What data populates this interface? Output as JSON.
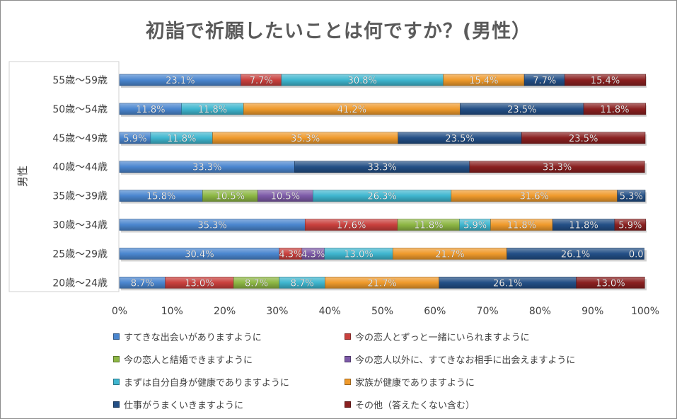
{
  "chart_data": {
    "type": "bar",
    "orientation": "horizontal",
    "stacked": "percent",
    "title": "初詣で祈願したいことは何ですか？(男性）",
    "ylabel": "男性",
    "xlim": [
      0,
      100
    ],
    "x_ticks": [
      "0%",
      "10%",
      "20%",
      "30%",
      "40%",
      "50%",
      "60%",
      "70%",
      "80%",
      "90%",
      "100%"
    ],
    "legend_position": "bottom",
    "categories": [
      "55歳～59歳",
      "50歳～54歳",
      "45歳～49歳",
      "40歳～44歳",
      "35歳～39歳",
      "30歳～34歳",
      "25歳～29歳",
      "20歳～24歳"
    ],
    "series": [
      {
        "name": "すてきな出会いがありますように",
        "color": "#4a86cf",
        "values": [
          23.1,
          11.8,
          5.9,
          33.3,
          15.8,
          35.3,
          30.4,
          8.7
        ]
      },
      {
        "name": "今の恋人とずっと一緒にいられますように",
        "color": "#c9403d",
        "values": [
          7.7,
          0,
          0,
          0,
          0,
          17.6,
          4.3,
          13.0
        ]
      },
      {
        "name": "今の恋人と結婚できますように",
        "color": "#8db744",
        "values": [
          0,
          0,
          0,
          0,
          10.5,
          11.8,
          0,
          8.7
        ]
      },
      {
        "name": "今の恋人以外に、すてきなお相手に出会えますように",
        "color": "#7d5aa8",
        "values": [
          0,
          0,
          0,
          0,
          10.5,
          0,
          4.3,
          0
        ]
      },
      {
        "name": "まずは自分自身が健康でありますように",
        "color": "#3fb6cf",
        "values": [
          30.8,
          11.8,
          11.8,
          0,
          26.3,
          5.9,
          13.0,
          8.7
        ]
      },
      {
        "name": "家族が健康でありますように",
        "color": "#ef9a2c",
        "values": [
          15.4,
          41.2,
          35.3,
          0,
          31.6,
          11.8,
          21.7,
          21.7
        ]
      },
      {
        "name": "仕事がうまくいきますように",
        "color": "#234f86",
        "values": [
          7.7,
          23.5,
          23.5,
          33.3,
          5.3,
          11.8,
          26.1,
          26.1
        ]
      },
      {
        "name": "その他（答えたくない含む）",
        "color": "#8a2020",
        "values": [
          15.4,
          11.8,
          23.5,
          33.3,
          0,
          5.9,
          0.0,
          13.0
        ]
      }
    ],
    "data_labels": [
      [
        "23.1%",
        "7.7%",
        "",
        "",
        "30.8%",
        "15.4%",
        "7.7%",
        "15.4%"
      ],
      [
        "11.8%",
        "",
        "",
        "",
        "11.8%",
        "41.2%",
        "23.5%",
        "11.8%"
      ],
      [
        "5.9%",
        "",
        "",
        "",
        "11.8%",
        "35.3%",
        "23.5%",
        "23.5%"
      ],
      [
        "33.3%",
        "",
        "",
        "",
        "",
        "",
        "33.3%",
        "33.3%"
      ],
      [
        "15.8%",
        "",
        "10.5%",
        "10.5%",
        "26.3%",
        "31.6%",
        "5.3%",
        ""
      ],
      [
        "35.3%",
        "17.6%",
        "11.8%",
        "",
        "5.9%",
        "11.8%",
        "11.8%",
        "5.9%"
      ],
      [
        "30.4%",
        "4.3%",
        "",
        "4.3%",
        "13.0%",
        "21.7%",
        "26.1%",
        "0.0"
      ],
      [
        "8.7%",
        "13.0%",
        "8.7%",
        "",
        "8.7%",
        "21.7%",
        "26.1%",
        "13.0%"
      ]
    ]
  }
}
